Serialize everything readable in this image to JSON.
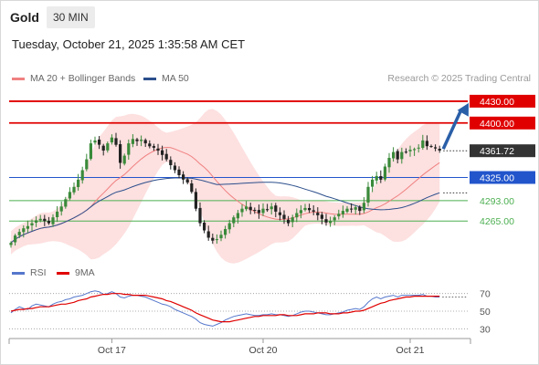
{
  "header": {
    "instrument": "Gold",
    "timeframe": "30 MIN",
    "datetime": "Tuesday, October 21, 2025 1:35:58 AM CET"
  },
  "legend": {
    "ma20": "MA 20 + Bollinger Bands",
    "ma50": "MA 50",
    "rsi": "RSI",
    "rsi_ma": "9MA"
  },
  "credit": "Research © 2025 Trading Central",
  "colors": {
    "ma20": "#f08080",
    "ma50": "#2c4f8c",
    "bb_fill": "#fde0e0",
    "up": "#3a8a3a",
    "down": "#222222",
    "resistance": "#e00000",
    "pivot": "#2255cc",
    "support": "#4caf50",
    "rsi": "#5577cc",
    "rsi_ma": "#e00000",
    "arrow": "#2a5fa8",
    "last": "#333333"
  },
  "chart_data": [
    {
      "type": "candlestick",
      "ylim": [
        4215,
        4450
      ],
      "x_ticks": [
        {
          "label": "Oct 17",
          "index": 24
        },
        {
          "label": "Oct 20",
          "index": 60
        },
        {
          "label": "Oct 21",
          "index": 95
        }
      ],
      "last_price": "4361.72",
      "levels": [
        {
          "value": 4430.0,
          "label": "4430.00",
          "kind": "resistance"
        },
        {
          "value": 4400.0,
          "label": "4400.00",
          "kind": "resistance"
        },
        {
          "value": 4325.0,
          "label": "4325.00",
          "kind": "pivot"
        },
        {
          "value": 4293.0,
          "label": "4293.00",
          "kind": "support"
        },
        {
          "value": 4265.0,
          "label": "4265.00",
          "kind": "support"
        }
      ],
      "arrow_target": 4430.0,
      "closes": [
        4235,
        4245,
        4250,
        4255,
        4258,
        4262,
        4266,
        4268,
        4265,
        4262,
        4270,
        4278,
        4285,
        4295,
        4305,
        4312,
        4322,
        4335,
        4350,
        4372,
        4376,
        4370,
        4362,
        4372,
        4380,
        4370,
        4345,
        4355,
        4372,
        4378,
        4375,
        4377,
        4372,
        4368,
        4366,
        4362,
        4356,
        4350,
        4342,
        4335,
        4328,
        4322,
        4318,
        4305,
        4282,
        4262,
        4252,
        4242,
        4238,
        4240,
        4246,
        4254,
        4262,
        4270,
        4276,
        4282,
        4285,
        4280,
        4280,
        4276,
        4282,
        4280,
        4285,
        4278,
        4273,
        4268,
        4262,
        4270,
        4276,
        4280,
        4283,
        4280,
        4278,
        4273,
        4268,
        4263,
        4265,
        4270,
        4275,
        4279,
        4282,
        4281,
        4284,
        4279,
        4290,
        4312,
        4322,
        4327,
        4322,
        4340,
        4352,
        4360,
        4350,
        4360,
        4360,
        4363,
        4364,
        4366,
        4376,
        4368,
        4368,
        4365,
        4362
      ]
    },
    {
      "type": "line",
      "title": "RSI",
      "ylim": [
        20,
        80
      ],
      "y_ticks": [
        70,
        50,
        30
      ],
      "series": [
        {
          "name": "RSI",
          "values": [
            48,
            52,
            55,
            53,
            52,
            56,
            58,
            57,
            56,
            55,
            58,
            60,
            61,
            63,
            64,
            66,
            67,
            68,
            70,
            72,
            73,
            72,
            69,
            70,
            72,
            70,
            66,
            65,
            67,
            68,
            68,
            67,
            66,
            64,
            62,
            60,
            58,
            57,
            55,
            52,
            50,
            48,
            46,
            44,
            41,
            37,
            35,
            34,
            33,
            35,
            37,
            40,
            42,
            44,
            45,
            46,
            47,
            46,
            45,
            45,
            46,
            46,
            47,
            46,
            46,
            45,
            44,
            45,
            47,
            49,
            50,
            50,
            49,
            48,
            47,
            46,
            46,
            47,
            48,
            49,
            51,
            52,
            53,
            52,
            55,
            60,
            64,
            66,
            64,
            66,
            67,
            68,
            66,
            68,
            68,
            68,
            68,
            68,
            69,
            67,
            67,
            66,
            66
          ]
        },
        {
          "name": "9MA",
          "values": [
            50,
            51,
            52,
            52,
            53,
            53,
            54,
            55,
            55,
            55,
            56,
            57,
            58,
            58,
            59,
            60,
            62,
            63,
            64,
            66,
            67,
            68,
            69,
            69,
            70,
            70,
            70,
            69,
            69,
            68,
            68,
            68,
            68,
            67,
            66,
            65,
            64,
            62,
            61,
            59,
            57,
            55,
            53,
            51,
            48,
            46,
            44,
            42,
            40,
            39,
            38,
            38,
            38,
            39,
            40,
            41,
            42,
            43,
            44,
            44,
            45,
            45,
            45,
            45,
            46,
            46,
            45,
            45,
            45,
            46,
            47,
            47,
            47,
            48,
            48,
            48,
            47,
            47,
            47,
            48,
            48,
            49,
            50,
            50,
            51,
            53,
            55,
            57,
            59,
            60,
            62,
            63,
            64,
            65,
            66,
            66,
            67,
            67,
            67,
            67,
            67,
            67,
            67
          ]
        }
      ]
    }
  ]
}
